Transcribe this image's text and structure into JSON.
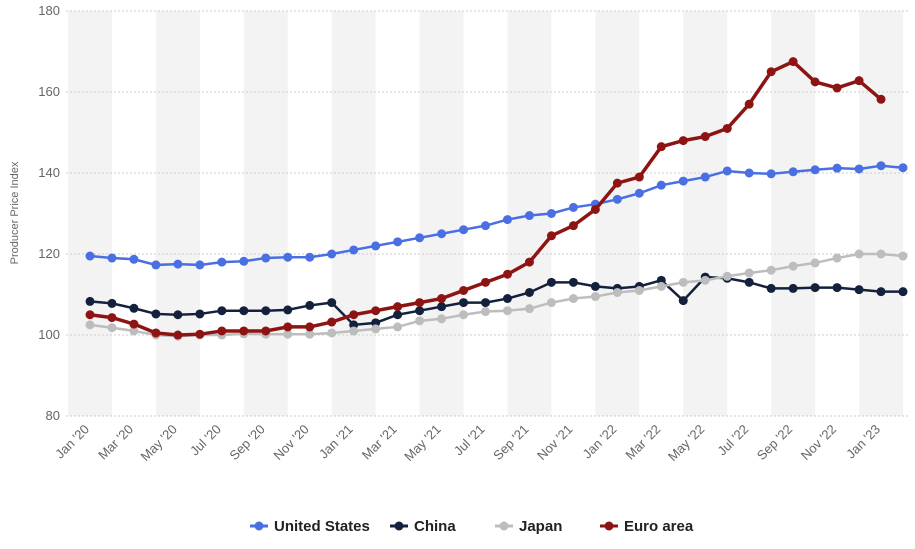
{
  "chart_data": {
    "type": "line",
    "y_label": "Producer Price Index",
    "categories": [
      "Jan '20",
      null,
      "Mar '20",
      null,
      "May '20",
      null,
      "Jul '20",
      null,
      "Sep '20",
      null,
      "Nov '20",
      null,
      "Jan '21",
      null,
      "Mar '21",
      null,
      "May '21",
      null,
      "Jul '21",
      null,
      "Sep '21",
      null,
      "Nov '21",
      null,
      "Jan '22",
      null,
      "Mar '22",
      null,
      "May '22",
      null,
      "Jul '22",
      null,
      "Sep '22",
      null,
      "Nov '22",
      null,
      "Jan '23",
      null
    ],
    "ylim": [
      80,
      180
    ],
    "yticks": [
      80,
      100,
      120,
      140,
      160,
      180
    ],
    "grid": true,
    "series": [
      {
        "name": "United States",
        "color": "#4a6fe3",
        "values": [
          119.5,
          119,
          118.7,
          117.3,
          117.5,
          117.3,
          118,
          118.2,
          119,
          119.2,
          119.2,
          120,
          121,
          122,
          123,
          124,
          125,
          126,
          127,
          128.5,
          129.5,
          130,
          131.5,
          132.3,
          133.5,
          135,
          137,
          138,
          139,
          140.5,
          140,
          139.8,
          140.3,
          140.8,
          141.2,
          141,
          141.8,
          141.3
        ]
      },
      {
        "name": "China",
        "color": "#14213d",
        "values": [
          108.3,
          107.8,
          106.6,
          105.2,
          105,
          105.2,
          106,
          106,
          106,
          106.2,
          107.3,
          108,
          102.5,
          103,
          105,
          106,
          107,
          108,
          108,
          109,
          110.5,
          113,
          113,
          112,
          111.5,
          112,
          113.5,
          108.5,
          114.3,
          114,
          113,
          111.5,
          111.5,
          111.7,
          111.7,
          111.2,
          110.7,
          110.7
        ]
      },
      {
        "name": "Japan",
        "color": "#bdbdbd",
        "values": [
          102.5,
          101.8,
          101,
          100,
          99.7,
          100,
          100,
          100.3,
          100.2,
          100.2,
          100.2,
          100.5,
          101,
          101.5,
          102,
          103.5,
          104,
          105,
          105.8,
          106,
          106.5,
          108,
          109,
          109.5,
          110.5,
          111,
          112,
          113,
          113.5,
          114.5,
          115.3,
          116,
          117,
          117.8,
          119,
          120,
          120,
          119.5
        ]
      },
      {
        "name": "Euro area",
        "color": "#8e1414",
        "values": [
          105,
          104.3,
          102.7,
          100.5,
          100,
          100.2,
          101,
          101,
          101,
          102,
          102,
          103.2,
          105,
          106,
          107,
          108,
          109,
          111,
          113,
          115,
          118,
          124.5,
          127,
          131,
          137.5,
          139,
          146.5,
          148,
          149,
          151,
          157,
          165,
          167.5,
          162.5,
          161,
          162.8,
          158.2,
          null
        ]
      }
    ]
  }
}
